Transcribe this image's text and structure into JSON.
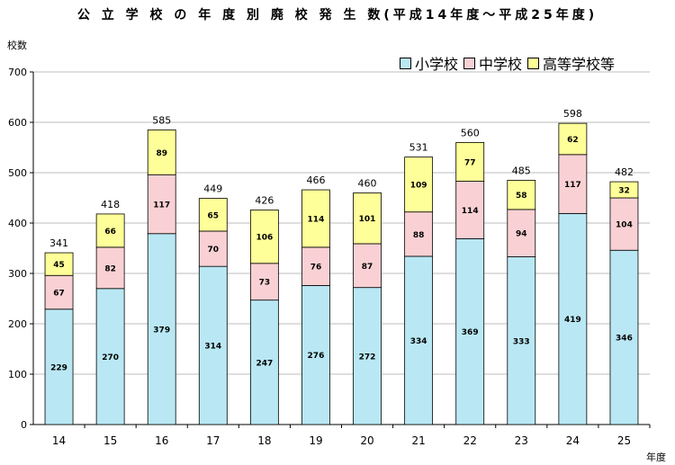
{
  "title": "公 立 学 校 の 年 度 別 廃 校 発 生 数(平成14年度～平成25年度)",
  "chart_data": {
    "type": "bar",
    "stacked": true,
    "title": "公 立 学 校 の 年 度 別 廃 校 発 生 数(平成14年度～平成25年度)",
    "ylabel": "校数",
    "xlabel": "年度",
    "ylim": [
      0,
      700
    ],
    "yticks": [
      0,
      100,
      200,
      300,
      400,
      500,
      600,
      700
    ],
    "grid": true,
    "legend_position": "top-right",
    "categories": [
      "14",
      "15",
      "16",
      "17",
      "18",
      "19",
      "20",
      "21",
      "22",
      "23",
      "24",
      "25"
    ],
    "series": [
      {
        "name": "小学校",
        "color": "#b9e8f4",
        "values": [
          229,
          270,
          379,
          314,
          247,
          276,
          272,
          334,
          369,
          333,
          419,
          346
        ]
      },
      {
        "name": "中学校",
        "color": "#f9d1d4",
        "values": [
          67,
          82,
          117,
          70,
          73,
          76,
          87,
          88,
          114,
          94,
          117,
          104
        ]
      },
      {
        "name": "高等学校等",
        "color": "#ffff99",
        "values": [
          45,
          66,
          89,
          65,
          106,
          114,
          101,
          109,
          77,
          58,
          62,
          32
        ]
      }
    ],
    "totals": [
      341,
      418,
      585,
      449,
      426,
      466,
      460,
      531,
      560,
      485,
      598,
      482
    ]
  }
}
